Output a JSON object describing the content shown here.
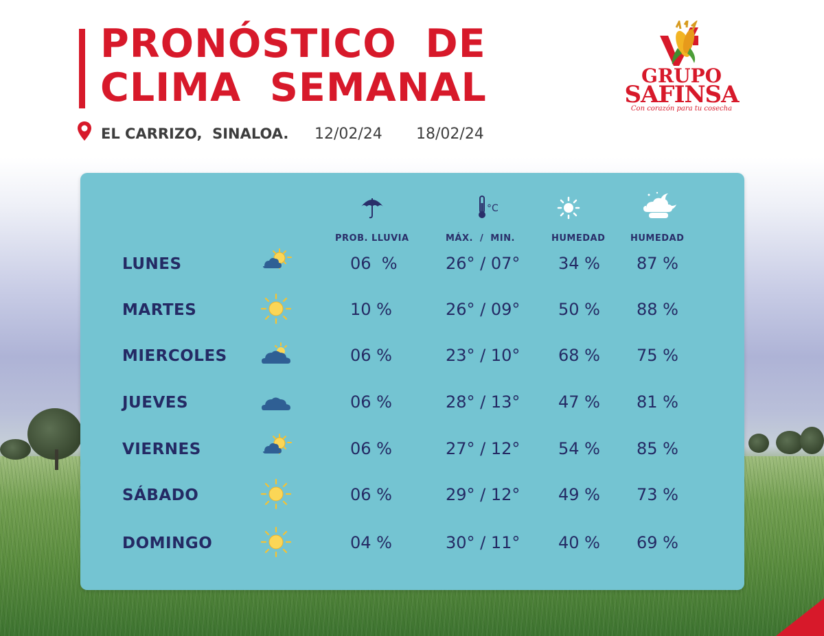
{
  "header": {
    "title_line1": "PRONÓSTICO  DE",
    "title_line2": "CLIMA  SEMANAL",
    "location": "EL CARRIZO,  SINALOA.",
    "date_start": "12/02/24",
    "date_end": "18/02/24",
    "location_icon": "map-pin-icon"
  },
  "brand": {
    "line1": "GRUPO",
    "line2": "SAFINSA",
    "tagline": "Con corazón para tu cosecha",
    "color": "#d7192a"
  },
  "columns": [
    {
      "icon": "umbrella-icon",
      "label": "PROB. LLUVIA"
    },
    {
      "icon": "thermometer-icon",
      "label": "MÁX.  /  MIN."
    },
    {
      "icon": "sun-icon",
      "label": "HUMEDAD"
    },
    {
      "icon": "night-cloud-icon",
      "label": "HUMEDAD"
    }
  ],
  "days": [
    {
      "name": "LUNES",
      "icon": "partly-cloudy-icon",
      "rain": "06  %",
      "temp": "26° / 07°",
      "hum_day": "34 %",
      "hum_night": "87 %"
    },
    {
      "name": "MARTES",
      "icon": "sunny-icon",
      "rain": "10 %",
      "temp": "26° / 09°",
      "hum_day": "50 %",
      "hum_night": "88 %"
    },
    {
      "name": "MIERCOLES",
      "icon": "mostly-cloudy-icon",
      "rain": "06 %",
      "temp": "23° / 10°",
      "hum_day": "68 %",
      "hum_night": "75 %"
    },
    {
      "name": "JUEVES",
      "icon": "cloudy-icon",
      "rain": "06 %",
      "temp": "28° / 13°",
      "hum_day": "47 %",
      "hum_night": "81 %"
    },
    {
      "name": "VIERNES",
      "icon": "partly-cloudy-icon",
      "rain": "06 %",
      "temp": "27° / 12°",
      "hum_day": "54 %",
      "hum_night": "85 %"
    },
    {
      "name": "SÁBADO",
      "icon": "sunny-icon",
      "rain": "06 %",
      "temp": "29° / 12°",
      "hum_day": "49 %",
      "hum_night": "73 %"
    },
    {
      "name": "DOMINGO",
      "icon": "sunny-icon",
      "rain": "04 %",
      "temp": "30° / 11°",
      "hum_day": "40 %",
      "hum_night": "69 %"
    }
  ]
}
